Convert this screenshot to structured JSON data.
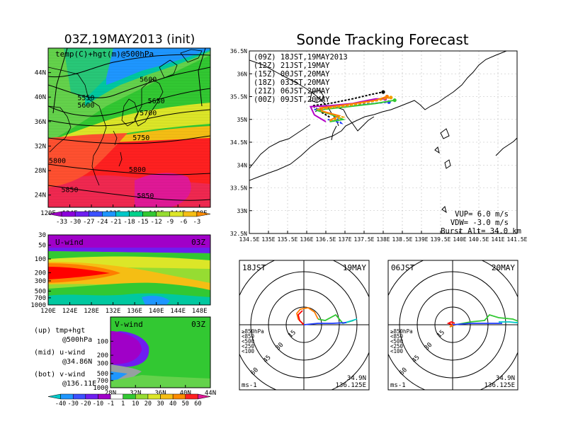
{
  "header": {
    "left_title": "03Z,19MAY2013 (init)",
    "right_title": "Sonde Tracking Forecast"
  },
  "colors": {
    "hot_red": "#ff0000",
    "magenta": "#e01896",
    "orange": "#ff7d00",
    "yellow": "#f0dc00",
    "green": "#32c832",
    "cyan": "#00c8c8",
    "blue": "#1e3cff",
    "purple": "#a000c8"
  },
  "chart_data": [
    {
      "type": "heatmap",
      "label": "temp(C)+hgt(m)@500hPa",
      "x_ticks": [
        "120E",
        "124E",
        "128E",
        "132E",
        "136E",
        "140E",
        "144E",
        "148E"
      ],
      "y_ticks": [
        "24N",
        "28N",
        "32N",
        "36N",
        "40N",
        "44N"
      ],
      "xlim": [
        120,
        150
      ],
      "ylim": [
        22,
        48
      ],
      "contour_labels": [
        {
          "text": "5600",
          "lon": 138.5,
          "lat": 42.5
        },
        {
          "text": "5550",
          "lon": 127,
          "lat": 39.5
        },
        {
          "text": "5600",
          "lon": 127,
          "lat": 38.3
        },
        {
          "text": "5650",
          "lon": 140,
          "lat": 39
        },
        {
          "text": "5700",
          "lon": 138.5,
          "lat": 37
        },
        {
          "text": "5750",
          "lon": 137.2,
          "lat": 33
        },
        {
          "text": "5800",
          "lon": 121.7,
          "lat": 29.2
        },
        {
          "text": "5800",
          "lon": 136.5,
          "lat": 27.8
        },
        {
          "text": "5850",
          "lon": 124,
          "lat": 24.5
        },
        {
          "text": "5850",
          "lon": 138,
          "lat": 23.5
        }
      ],
      "colorbar": {
        "labels": [
          "-33",
          "-30",
          "-27",
          "-24",
          "-21",
          "-18",
          "-15",
          "-12",
          "-9",
          "-6",
          "-3"
        ],
        "colors": [
          "#a000c8",
          "#8c00dc",
          "#6e1ef0",
          "#3c50ff",
          "#1e96ff",
          "#00c8c8",
          "#00d28c",
          "#32c832",
          "#96dc32",
          "#dce628",
          "#f5be14",
          "#ff8c00"
        ]
      }
    },
    {
      "type": "heatmap",
      "label": "U-wind",
      "time": "03Z",
      "x_ticks": [
        "120E",
        "124E",
        "128E",
        "132E",
        "136E",
        "140E",
        "144E",
        "148E"
      ],
      "y_ticks": [
        "30",
        "50",
        "100",
        "200",
        "300",
        "500",
        "700",
        "1000"
      ]
    },
    {
      "type": "heatmap",
      "label": "V-wind",
      "time": "03Z",
      "x_ticks": [
        "28N",
        "32N",
        "36N",
        "40N",
        "44N"
      ],
      "y_ticks": [
        "100",
        "200",
        "300",
        "500",
        "700",
        "1000"
      ],
      "colorbar": {
        "labels": [
          "-40",
          "-30",
          "-20",
          "-10",
          "-1",
          "1",
          "10",
          "20",
          "30",
          "40",
          "50",
          "60"
        ]
      }
    },
    {
      "type": "line",
      "title": "Sonde Tracking Forecast",
      "x_ticks": [
        "134.5E",
        "135E",
        "135.5E",
        "136E",
        "136.5E",
        "137E",
        "137.5E",
        "138E",
        "138.5E",
        "139E",
        "139.5E",
        "140E",
        "140.5E",
        "141E",
        "141.5E"
      ],
      "y_ticks": [
        "32.5N",
        "33N",
        "33.5N",
        "34N",
        "34.5N",
        "35N",
        "35.5N",
        "36N",
        "36.5N"
      ],
      "xlim": [
        134.5,
        141.5
      ],
      "ylim": [
        32.5,
        36.5
      ],
      "series": [
        {
          "name": "(09Z)  18JST,19MAY2013",
          "color": "#000000",
          "points": [
            [
              136.6,
              35.05
            ],
            [
              136.4,
              35.15
            ],
            [
              136.15,
              35.3
            ],
            [
              136.6,
              35.35
            ],
            [
              137.2,
              35.45
            ],
            [
              137.7,
              35.55
            ],
            [
              138.0,
              35.6
            ]
          ]
        },
        {
          "name": "(12Z)  21JST,19MAY",
          "color": "#b400c8",
          "points": [
            [
              136.5,
              34.95
            ],
            [
              136.2,
              35.1
            ],
            [
              136.1,
              35.28
            ],
            [
              136.6,
              35.3
            ],
            [
              137.2,
              35.35
            ],
            [
              137.8,
              35.45
            ],
            [
              138.05,
              35.45
            ]
          ]
        },
        {
          "name": "(15Z)  00JST,20MAY",
          "color": "#1e3cff",
          "points": [
            [
              136.55,
              35.0
            ],
            [
              136.9,
              34.92
            ],
            [
              136.7,
              35.1
            ],
            [
              136.2,
              35.22
            ],
            [
              136.8,
              35.28
            ],
            [
              137.5,
              35.33
            ],
            [
              138.15,
              35.38
            ]
          ]
        },
        {
          "name": "(18Z)  03JST,20MAY",
          "color": "#32c832",
          "points": [
            [
              136.6,
              34.95
            ],
            [
              136.95,
              35.0
            ],
            [
              136.6,
              35.12
            ],
            [
              136.25,
              35.2
            ],
            [
              137.0,
              35.27
            ],
            [
              137.8,
              35.35
            ],
            [
              138.3,
              35.42
            ]
          ]
        },
        {
          "name": "(21Z)  06JST,20MAY",
          "color": "#f0a000",
          "points": [
            [
              136.6,
              34.97
            ],
            [
              136.95,
              35.05
            ],
            [
              136.5,
              35.15
            ],
            [
              136.3,
              35.22
            ],
            [
              137.1,
              35.3
            ],
            [
              137.9,
              35.42
            ],
            [
              138.2,
              35.48
            ]
          ]
        },
        {
          "name": "(00Z)  09JST,20MAY",
          "color": "#ff7d00",
          "points": [
            [
              136.6,
              34.98
            ],
            [
              136.85,
              35.08
            ],
            [
              136.4,
              35.18
            ],
            [
              136.35,
              35.25
            ],
            [
              137.1,
              35.33
            ],
            [
              137.8,
              35.42
            ],
            [
              138.1,
              35.5
            ]
          ]
        }
      ],
      "params": {
        "vup": "VUP=  6.0  m/s",
        "vdw": "VDW= -3.0  m/s",
        "burst": "Burst Alt= 34.0  km"
      }
    },
    {
      "type": "scatter",
      "label_left": "18JST",
      "label_right": "19MAY",
      "coord": [
        "34.9N",
        "136.125E"
      ],
      "units": "ms-1",
      "ring_labels": [
        "15",
        "30",
        "45",
        "60"
      ],
      "levels": [
        "≥850hPa",
        "<850",
        "<500",
        "<250",
        "<100"
      ]
    },
    {
      "type": "scatter",
      "label_left": "06JST",
      "label_right": "20MAY",
      "coord": [
        "34.9N",
        "136.125E"
      ],
      "units": "ms-1",
      "ring_labels": [
        "15",
        "30",
        "45",
        "60"
      ],
      "levels": [
        "≥850hPa",
        "<850",
        "<500",
        "<250",
        "<100"
      ]
    }
  ],
  "side_text": {
    "up_1": "(up) tmp+hgt",
    "up_2": "@500hPa",
    "mid_1": "(mid) u-wind",
    "mid_2": "@34.86N",
    "bot_1": "(bot) v-wind",
    "bot_2": "@136.11E"
  }
}
